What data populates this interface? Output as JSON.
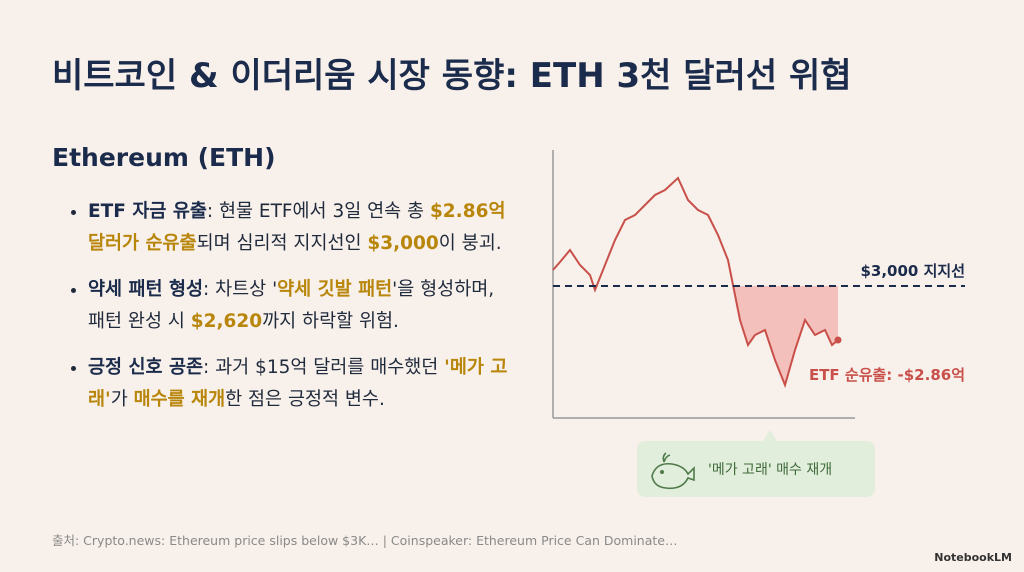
{
  "header": {
    "title": "비트코인 & 이더리움 시장 동향: ETH 3천 달러선 위협"
  },
  "section": {
    "heading": "Ethereum (ETH)",
    "bullets": [
      {
        "segments": [
          {
            "text": "ETF 자금 유출",
            "style": "bold"
          },
          {
            "text": ": 현물 ETF에서 3일 연속 총 ",
            "style": "plain"
          },
          {
            "text": "$2.86억 달러가 순유출",
            "style": "gold"
          },
          {
            "text": "되며 심리적 지지선인 ",
            "style": "plain"
          },
          {
            "text": "$3,000",
            "style": "gold"
          },
          {
            "text": "이 붕괴.",
            "style": "plain"
          }
        ]
      },
      {
        "segments": [
          {
            "text": "약세 패턴 형성",
            "style": "bold"
          },
          {
            "text": ": 차트상 '",
            "style": "plain"
          },
          {
            "text": "약세 깃발 패턴",
            "style": "gold"
          },
          {
            "text": "'을 형성하며, 패턴 완성 시 ",
            "style": "plain"
          },
          {
            "text": "$2,620",
            "style": "gold"
          },
          {
            "text": "까지 하락할 위험.",
            "style": "plain"
          }
        ]
      },
      {
        "segments": [
          {
            "text": "긍정 신호 공존",
            "style": "bold"
          },
          {
            "text": ": 과거 $15억 달러를 매수했던 ",
            "style": "plain"
          },
          {
            "text": "'메가 고래'",
            "style": "gold"
          },
          {
            "text": "가 ",
            "style": "plain"
          },
          {
            "text": "매수를 재개",
            "style": "gold"
          },
          {
            "text": "한 점은 긍정적 변수.",
            "style": "plain"
          }
        ]
      }
    ]
  },
  "illustration": {
    "support_label": "$3,000 지지선",
    "outflow_label": "ETF 순유출: -$2.86억",
    "badge": "'메가 고래' 매수 재개"
  },
  "footer": {
    "source": "출처: Crypto.news: Ethereum price slips below $3K… | Coinspeaker: Ethereum Price Can Dominate…",
    "brand": "NotebookLM"
  }
}
